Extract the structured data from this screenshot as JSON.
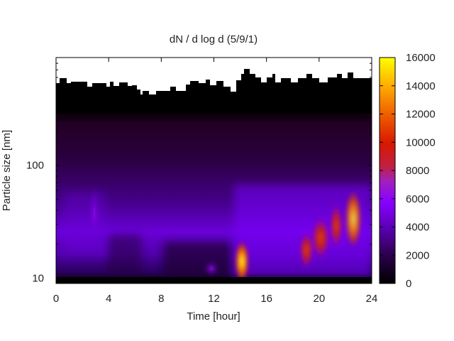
{
  "chart_data": {
    "type": "heatmap",
    "title": "dN / d log d (5/9/1)",
    "xlabel": "Time [hour]",
    "ylabel": "Particle size [nm]",
    "x_range": [
      0,
      24
    ],
    "x_ticks": [
      0,
      4,
      8,
      12,
      16,
      20,
      24
    ],
    "y_scale": "log",
    "y_range": [
      9,
      900
    ],
    "y_ticks": [
      10,
      100
    ],
    "colorbar": {
      "range": [
        0,
        16000
      ],
      "ticks": [
        0,
        2000,
        4000,
        6000,
        8000,
        10000,
        12000,
        14000,
        16000
      ],
      "colormap": "gnuplot-black-blue-purple-red-orange-yellow"
    },
    "grid": false,
    "features": [
      {
        "time_hour": 14.1,
        "size_nm": 12,
        "value": 16000
      },
      {
        "time_hour": 19.2,
        "size_nm": 23,
        "value": 8500
      },
      {
        "time_hour": 20.0,
        "size_nm": 28,
        "value": 9000
      },
      {
        "time_hour": 21.2,
        "size_nm": 38,
        "value": 9500
      },
      {
        "time_hour": 22.5,
        "size_nm": 38,
        "value": 11500
      }
    ]
  },
  "colors": {
    "black": "#000000",
    "purple": "#8a00ff",
    "red": "#d81800",
    "orange": "#ff8c00",
    "yellow": "#ffff00"
  }
}
